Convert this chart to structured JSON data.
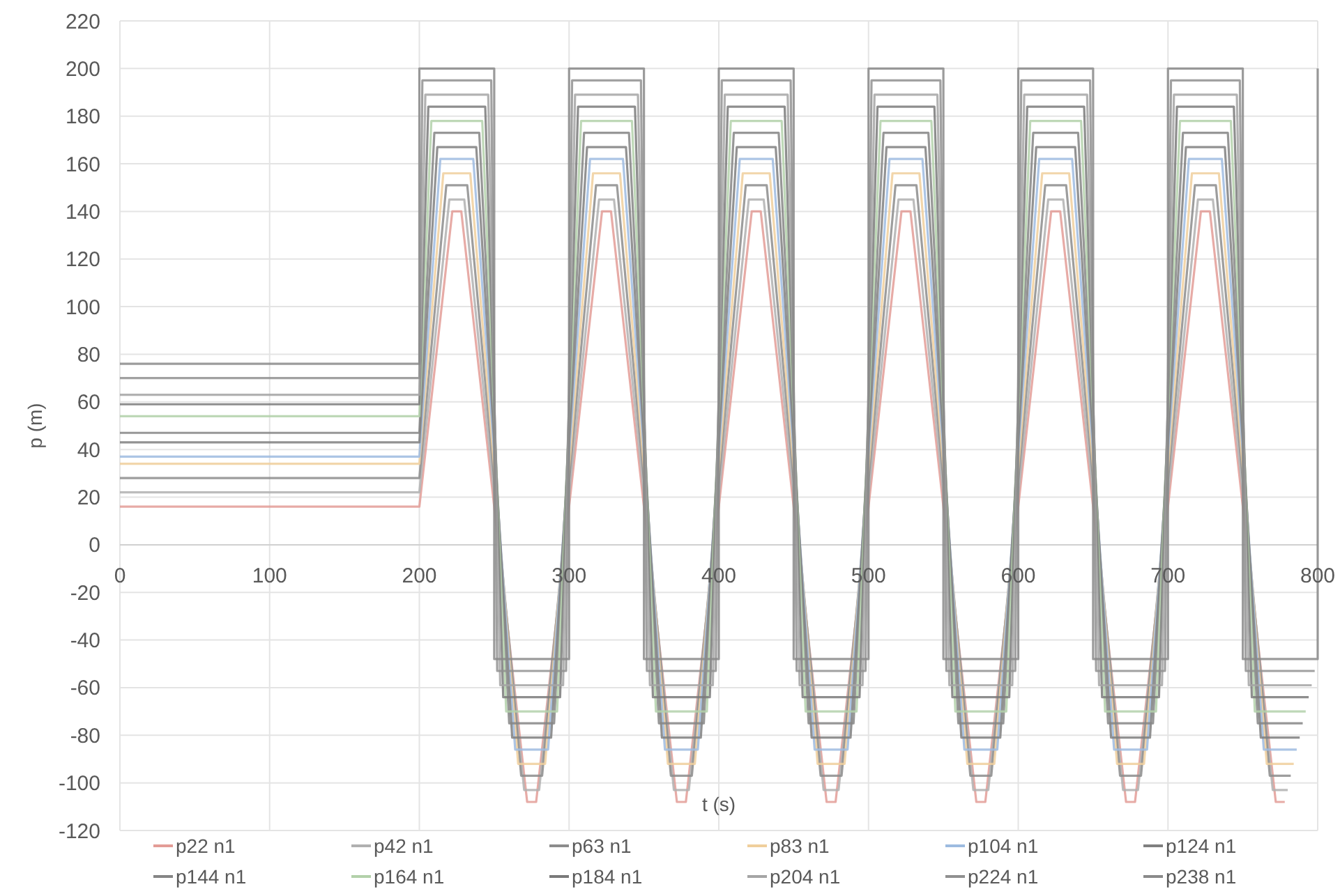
{
  "chart_data": {
    "type": "line",
    "xlabel": "t (s)",
    "ylabel": "p (m)",
    "xlim": [
      0,
      800
    ],
    "ylim": [
      -120,
      220
    ],
    "xticks": [
      0,
      100,
      200,
      300,
      400,
      500,
      600,
      700,
      800
    ],
    "yticks": [
      -120,
      -100,
      -80,
      -60,
      -40,
      -20,
      0,
      20,
      40,
      60,
      80,
      100,
      120,
      140,
      160,
      180,
      200,
      220
    ],
    "grid": true,
    "legend": "bottom",
    "marker": "none",
    "line_style": "solid",
    "series": [
      {
        "name": "p22 n1",
        "color": "#e39c96",
        "x": [
          0,
          200,
          222,
          228,
          272,
          278,
          322,
          328,
          372,
          378,
          422,
          428,
          472,
          478,
          522,
          528,
          572,
          578,
          622,
          628,
          672,
          678,
          722,
          728,
          772,
          778
        ],
        "values": [
          16,
          16,
          140,
          140,
          -108,
          -108,
          140,
          140,
          -108,
          -108,
          140,
          140,
          -108,
          -108,
          140,
          140,
          -108,
          -108,
          140,
          140,
          -108,
          -108,
          140,
          140,
          -108,
          -108
        ]
      },
      {
        "name": "p42 n1",
        "color": "#b0b0b0",
        "x": [
          0,
          200,
          220,
          230,
          270,
          280,
          320,
          330,
          370,
          380,
          420,
          430,
          470,
          480,
          520,
          530,
          570,
          580,
          620,
          630,
          670,
          680,
          720,
          730,
          770,
          780
        ],
        "values": [
          22,
          22,
          145,
          145,
          -103,
          -103,
          145,
          145,
          -103,
          -103,
          145,
          145,
          -103,
          -103,
          145,
          145,
          -103,
          -103,
          145,
          145,
          -103,
          -103,
          145,
          145,
          -103,
          -103
        ]
      },
      {
        "name": "p63 n1",
        "color": "#8c8c8c",
        "x": [
          0,
          200,
          218,
          232,
          268,
          282,
          318,
          332,
          368,
          382,
          418,
          432,
          468,
          482,
          518,
          532,
          568,
          582,
          618,
          632,
          668,
          682,
          718,
          732,
          768,
          782
        ],
        "values": [
          28,
          28,
          151,
          151,
          -97,
          -97,
          151,
          151,
          -97,
          -97,
          151,
          151,
          -97,
          -97,
          151,
          151,
          -97,
          -97,
          151,
          151,
          -97,
          -97,
          151,
          151,
          -97,
          -97
        ]
      },
      {
        "name": "p83 n1",
        "color": "#f0cf9c",
        "x": [
          0,
          200,
          216,
          234,
          266,
          284,
          316,
          334,
          366,
          384,
          416,
          434,
          466,
          484,
          516,
          534,
          566,
          584,
          616,
          634,
          666,
          684,
          716,
          734,
          766,
          784
        ],
        "values": [
          34,
          34,
          156,
          156,
          -92,
          -92,
          156,
          156,
          -92,
          -92,
          156,
          156,
          -92,
          -92,
          156,
          156,
          -92,
          -92,
          156,
          156,
          -92,
          -92,
          156,
          156,
          -92,
          -92
        ]
      },
      {
        "name": "p104 n1",
        "color": "#9dbbe0",
        "x": [
          0,
          200,
          214,
          236,
          264,
          286,
          314,
          336,
          364,
          386,
          414,
          436,
          464,
          486,
          514,
          536,
          564,
          586,
          614,
          636,
          664,
          686,
          714,
          736,
          764,
          786
        ],
        "values": [
          37,
          37,
          162,
          162,
          -86,
          -86,
          162,
          162,
          -86,
          -86,
          162,
          162,
          -86,
          -86,
          162,
          162,
          -86,
          -86,
          162,
          162,
          -86,
          -86,
          162,
          162,
          -86,
          -86
        ]
      },
      {
        "name": "p124 n1",
        "color": "#7f7f7f",
        "x": [
          0,
          200,
          212,
          238,
          262,
          288,
          312,
          338,
          362,
          388,
          412,
          438,
          462,
          488,
          512,
          538,
          562,
          588,
          612,
          638,
          662,
          688,
          712,
          738,
          762,
          788
        ],
        "values": [
          43,
          43,
          167,
          167,
          -81,
          -81,
          167,
          167,
          -81,
          -81,
          167,
          167,
          -81,
          -81,
          167,
          167,
          -81,
          -81,
          167,
          167,
          -81,
          -81,
          167,
          167,
          -81,
          -81
        ]
      },
      {
        "name": "p144 n1",
        "color": "#858585",
        "x": [
          0,
          200,
          210,
          240,
          260,
          290,
          310,
          340,
          360,
          390,
          410,
          440,
          460,
          490,
          510,
          540,
          560,
          590,
          610,
          640,
          660,
          690,
          710,
          740,
          760,
          790
        ],
        "values": [
          47,
          47,
          173,
          173,
          -75,
          -75,
          173,
          173,
          -75,
          -75,
          173,
          173,
          -75,
          -75,
          173,
          173,
          -75,
          -75,
          173,
          173,
          -75,
          -75,
          173,
          173,
          -75,
          -75
        ]
      },
      {
        "name": "p164 n1",
        "color": "#b3d1aa",
        "x": [
          0,
          200,
          208,
          242,
          258,
          292,
          308,
          342,
          358,
          392,
          408,
          442,
          458,
          492,
          508,
          542,
          558,
          592,
          608,
          642,
          658,
          692,
          708,
          742,
          758,
          792
        ],
        "values": [
          54,
          54,
          178,
          178,
          -70,
          -70,
          178,
          178,
          -70,
          -70,
          178,
          178,
          -70,
          -70,
          178,
          178,
          -70,
          -70,
          178,
          178,
          -70,
          -70,
          178,
          178,
          -70,
          -70
        ]
      },
      {
        "name": "p184 n1",
        "color": "#7a7a7a",
        "x": [
          0,
          200,
          206,
          244,
          256,
          294,
          306,
          344,
          356,
          394,
          406,
          444,
          456,
          494,
          506,
          544,
          556,
          594,
          606,
          644,
          656,
          694,
          706,
          744,
          756,
          794
        ],
        "values": [
          59,
          59,
          184,
          184,
          -64,
          -64,
          184,
          184,
          -64,
          -64,
          184,
          184,
          -64,
          -64,
          184,
          184,
          -64,
          -64,
          184,
          184,
          -64,
          -64,
          184,
          184,
          -64,
          -64
        ]
      },
      {
        "name": "p204 n1",
        "color": "#a5a5a5",
        "x": [
          0,
          200,
          204,
          246,
          254,
          296,
          304,
          346,
          354,
          396,
          404,
          446,
          454,
          496,
          504,
          546,
          554,
          596,
          604,
          646,
          654,
          696,
          704,
          746,
          754,
          796
        ],
        "values": [
          63,
          63,
          189,
          189,
          -59,
          -59,
          189,
          189,
          -59,
          -59,
          189,
          189,
          -59,
          -59,
          189,
          189,
          -59,
          -59,
          189,
          189,
          -59,
          -59,
          189,
          189,
          -59,
          -59
        ]
      },
      {
        "name": "p224 n1",
        "color": "#909090",
        "x": [
          0,
          200,
          202,
          248,
          252,
          298,
          302,
          348,
          352,
          398,
          402,
          448,
          452,
          498,
          502,
          548,
          552,
          598,
          602,
          648,
          652,
          698,
          702,
          748,
          752,
          798
        ],
        "values": [
          70,
          70,
          195,
          195,
          -53,
          -53,
          195,
          195,
          -53,
          -53,
          195,
          195,
          -53,
          -53,
          195,
          195,
          -53,
          -53,
          195,
          195,
          -53,
          -53,
          195,
          195,
          -53,
          -53
        ]
      },
      {
        "name": "p238 n1",
        "color": "#8a8a8a",
        "x": [
          0,
          200,
          200,
          250,
          250,
          300,
          300,
          350,
          350,
          400,
          400,
          450,
          450,
          500,
          500,
          550,
          550,
          600,
          600,
          650,
          650,
          700,
          700,
          750,
          750,
          800,
          800
        ],
        "values": [
          76,
          76,
          200,
          200,
          -48,
          -48,
          200,
          200,
          -48,
          -48,
          200,
          200,
          -48,
          -48,
          200,
          200,
          -48,
          -48,
          200,
          200,
          -48,
          -48,
          200,
          200,
          -48,
          -48,
          200
        ]
      }
    ]
  }
}
